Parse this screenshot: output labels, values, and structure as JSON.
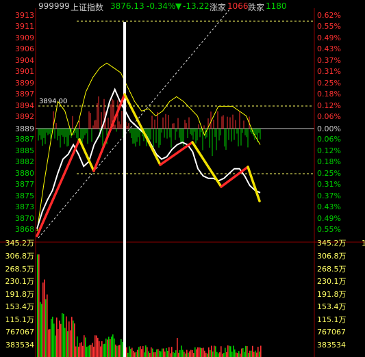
{
  "header": {
    "code": "999999",
    "name": "上证指数",
    "price": "3876.13",
    "change_pct": "-0.34%",
    "change_arrow": "▼",
    "change": "-13.22",
    "up_label": "涨家",
    "up_count": "1066",
    "down_label": "跌家",
    "down_count": "1180"
  },
  "price_axis": {
    "upper": [
      "3913",
      "3911",
      "3909",
      "3906",
      "3904",
      "3901",
      "3899",
      "3897",
      "3894",
      "3892"
    ],
    "mid": "3889",
    "lower": [
      "3887",
      "3885",
      "3882",
      "3880",
      "3877",
      "3875",
      "3873",
      "3870",
      "3868"
    ]
  },
  "pct_axis": {
    "upper": [
      "0.62%",
      "0.55%",
      "0.49%",
      "0.43%",
      "0.37%",
      "0.31%",
      "0.25%",
      "0.18%",
      "0.12%",
      "0.06%"
    ],
    "mid": "0.00%",
    "lower": [
      "0.06%",
      "0.12%",
      "0.18%",
      "0.25%",
      "0.31%",
      "0.37%",
      "0.43%",
      "0.49%",
      "0.55%"
    ]
  },
  "reference_label": "3894.00",
  "volume_axis": {
    "top": "345.2万",
    "labels": [
      "306.8万",
      "268.5万",
      "230.1万",
      "191.8万",
      "153.4万",
      "115.1万",
      "767067",
      "383534"
    ]
  },
  "right_edge_label": "1",
  "colors": {
    "background": "#000000",
    "up": "#ff3232",
    "down": "#00d000",
    "price_line": "#ffffff",
    "avg_line": "#ffff00",
    "ref_line": "#ffff66",
    "grid": "#8b0000",
    "highlight_line": "#ffffff"
  },
  "chart_data": {
    "type": "line",
    "series": [
      {
        "values": [
          3868.5,
          3872,
          3874.5,
          3876.5,
          3880,
          3883,
          3884,
          3886,
          3884,
          3881.5,
          3882.5,
          3886,
          3888,
          3891,
          3895,
          3897.5,
          3895,
          3893,
          3891,
          3890,
          3889,
          3888,
          3886,
          3884,
          3883,
          3883.5,
          3885,
          3886,
          3886.5,
          3886,
          3884.5,
          3881,
          3879.5,
          3879,
          3879,
          3878.5,
          3879,
          3880,
          3881,
          3881,
          3879.5,
          3877.5,
          3876.5,
          3876
        ]
      },
      {
        "values": [
          3868,
          3878,
          3887,
          3895,
          3893,
          3888,
          3891,
          3897,
          3900,
          3902,
          3903,
          3902,
          3901,
          3898,
          3895,
          3893,
          3893.5,
          3892,
          3893,
          3895,
          3896,
          3895,
          3893.5,
          3892,
          3888,
          3891,
          3894,
          3894,
          3894,
          3893,
          3892,
          3888.5,
          3886
        ]
      }
    ]
  }
}
